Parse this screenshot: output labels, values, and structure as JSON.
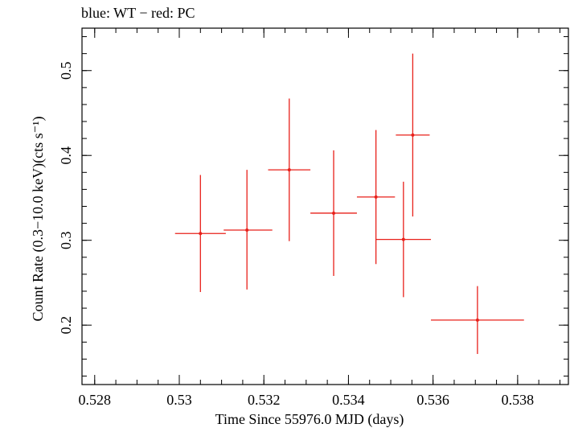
{
  "chart_data": {
    "type": "scatter",
    "title": "blue: WT − red: PC",
    "xlabel": "Time Since 55976.0 MJD (days)",
    "ylabel": "Count Rate (0.3−10.0 keV)(cts s⁻¹)",
    "xlim": [
      0.5277,
      0.5392
    ],
    "ylim": [
      0.13,
      0.55
    ],
    "x_ticks": [
      {
        "value": 0.528,
        "label": "0.528"
      },
      {
        "value": 0.53,
        "label": "0.53"
      },
      {
        "value": 0.532,
        "label": "0.532"
      },
      {
        "value": 0.534,
        "label": "0.534"
      },
      {
        "value": 0.536,
        "label": "0.536"
      },
      {
        "value": 0.538,
        "label": "0.538"
      }
    ],
    "x_minor_step": 0.0005,
    "y_ticks": [
      {
        "value": 0.2,
        "label": "0.2"
      },
      {
        "value": 0.3,
        "label": "0.3"
      },
      {
        "value": 0.4,
        "label": "0.4"
      },
      {
        "value": 0.5,
        "label": "0.5"
      }
    ],
    "y_minor_step": 0.02,
    "grid": false,
    "series": [
      {
        "color": "#e8201a",
        "points": [
          {
            "x": 0.5353,
            "xerr_lo": 0.00065,
            "xerr_hi": 0.00065,
            "y": 0.301,
            "yerr_lo": 0.068,
            "yerr_hi": 0.068
          },
          {
            "x": 0.5305,
            "xerr_lo": 0.0006,
            "xerr_hi": 0.0006,
            "y": 0.308,
            "yerr_lo": 0.069,
            "yerr_hi": 0.069
          },
          {
            "x": 0.5316,
            "xerr_lo": 0.00055,
            "xerr_hi": 0.0006,
            "y": 0.312,
            "yerr_lo": 0.07,
            "yerr_hi": 0.071
          },
          {
            "x": 0.5326,
            "xerr_lo": 0.0005,
            "xerr_hi": 0.0005,
            "y": 0.383,
            "yerr_lo": 0.084,
            "yerr_hi": 0.084
          },
          {
            "x": 0.53365,
            "xerr_lo": 0.00055,
            "xerr_hi": 0.00055,
            "y": 0.332,
            "yerr_lo": 0.074,
            "yerr_hi": 0.074
          },
          {
            "x": 0.53465,
            "xerr_lo": 0.00045,
            "xerr_hi": 0.00045,
            "y": 0.351,
            "yerr_lo": 0.079,
            "yerr_hi": 0.079
          },
          {
            "x": 0.53552,
            "xerr_lo": 0.0004,
            "xerr_hi": 0.0004,
            "y": 0.424,
            "yerr_lo": 0.096,
            "yerr_hi": 0.096
          },
          {
            "x": 0.53705,
            "xerr_lo": 0.0011,
            "xerr_hi": 0.0011,
            "y": 0.206,
            "yerr_lo": 0.04,
            "yerr_hi": 0.04
          }
        ]
      }
    ]
  }
}
